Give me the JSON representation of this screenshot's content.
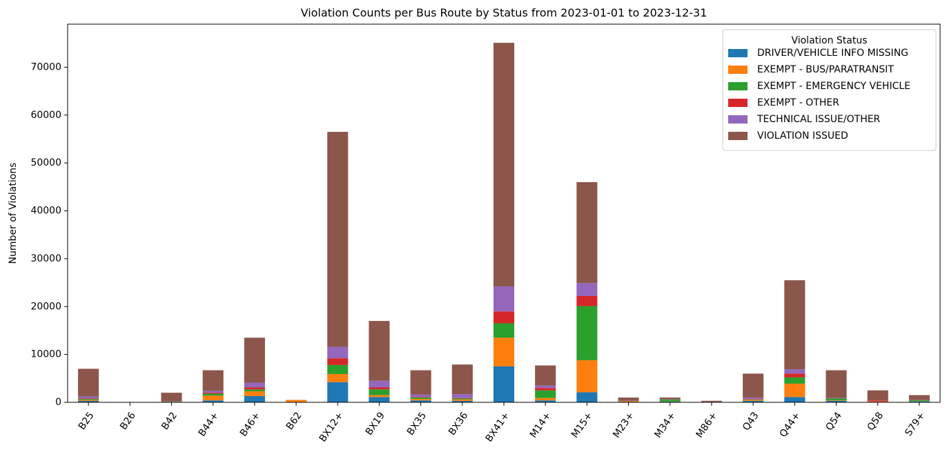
{
  "chart_data": {
    "type": "bar",
    "stacked": true,
    "title": "Violation Counts per Bus Route by Status from 2023-01-01 to 2023-12-31",
    "xlabel": "",
    "ylabel": "Number of Violations",
    "ylim": [
      0,
      79000
    ],
    "yticks": [
      0,
      10000,
      20000,
      30000,
      40000,
      50000,
      60000,
      70000
    ],
    "grid": false,
    "legend": {
      "title": "Violation Status",
      "placement": "top-right"
    },
    "categories": [
      "B25",
      "B26",
      "B42",
      "B44+",
      "B46+",
      "B62",
      "BX12+",
      "BX19",
      "BX35",
      "BX36",
      "BX41+",
      "M14+",
      "M15+",
      "M23+",
      "M34+",
      "M86+",
      "Q43",
      "Q44+",
      "Q54",
      "Q58",
      "S79+"
    ],
    "series": [
      {
        "name": "DRIVER/VEHICLE INFO MISSING",
        "color": "#1f77b4",
        "values": [
          300,
          0,
          50,
          400,
          1300,
          30,
          4200,
          1100,
          400,
          300,
          7500,
          400,
          2100,
          60,
          150,
          40,
          300,
          1100,
          300,
          50,
          200
        ]
      },
      {
        "name": "EXEMPT - BUS/PARATRANSIT",
        "color": "#ff7f0e",
        "values": [
          200,
          0,
          50,
          1000,
          1000,
          470,
          1700,
          400,
          300,
          300,
          6000,
          500,
          6700,
          150,
          50,
          20,
          200,
          2800,
          100,
          100,
          50
        ]
      },
      {
        "name": "EXEMPT - EMERGENCY VEHICLE",
        "color": "#2ca02c",
        "values": [
          200,
          0,
          50,
          400,
          400,
          0,
          1900,
          1200,
          300,
          200,
          3000,
          1600,
          11300,
          50,
          400,
          20,
          100,
          1300,
          400,
          30,
          200
        ]
      },
      {
        "name": "EXEMPT - OTHER",
        "color": "#d62728",
        "values": [
          100,
          0,
          20,
          200,
          400,
          0,
          1400,
          400,
          100,
          100,
          2500,
          500,
          2100,
          40,
          20,
          10,
          100,
          800,
          50,
          200,
          20
        ]
      },
      {
        "name": "TECHNICAL ISSUE/OTHER",
        "color": "#9467bd",
        "values": [
          400,
          0,
          30,
          400,
          1000,
          0,
          2400,
          1400,
          500,
          800,
          5200,
          500,
          2700,
          50,
          30,
          10,
          300,
          900,
          100,
          20,
          30
        ]
      },
      {
        "name": "VIOLATION ISSUED",
        "color": "#8c564b",
        "values": [
          5800,
          0,
          1800,
          4300,
          9400,
          0,
          44900,
          12500,
          5100,
          6200,
          50900,
          4200,
          21100,
          650,
          350,
          220,
          5000,
          18600,
          5750,
          2100,
          1000
        ]
      }
    ]
  }
}
